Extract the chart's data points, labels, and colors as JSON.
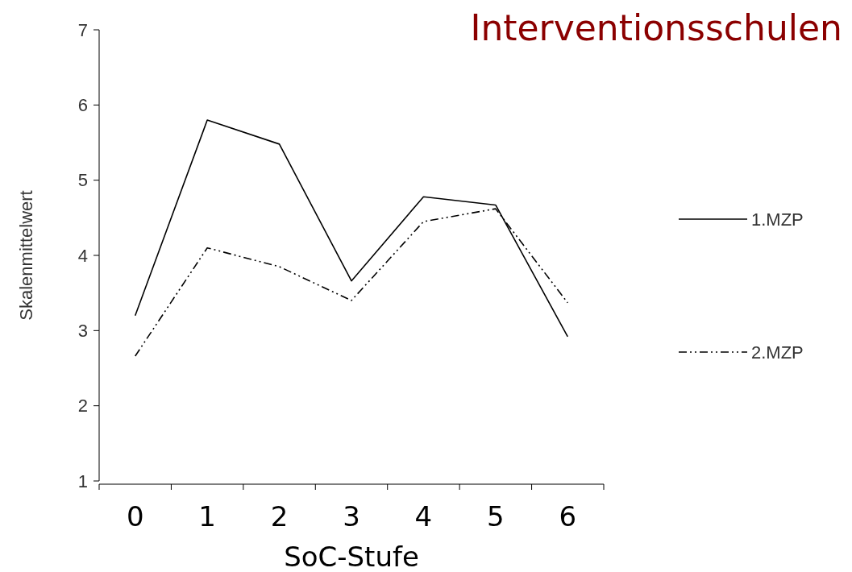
{
  "chart_data": {
    "type": "line",
    "title": "Interventionsschulen",
    "xlabel": "SoC-Stufe",
    "ylabel": "Skalenmittelwert",
    "categories": [
      "0",
      "1",
      "2",
      "3",
      "4",
      "5",
      "6"
    ],
    "series": [
      {
        "name": "1.MZP",
        "color": "#000000",
        "line_style": "solid",
        "values": [
          3.2,
          5.8,
          5.48,
          3.66,
          4.78,
          4.67,
          2.92
        ]
      },
      {
        "name": "2.MZP",
        "color": "#000000",
        "line_style": "dashed",
        "values": [
          2.66,
          4.1,
          3.85,
          3.4,
          4.45,
          4.62,
          3.37
        ]
      }
    ],
    "ylim": [
      1,
      7
    ],
    "yticks": [
      1,
      2,
      3,
      4,
      5,
      6,
      7
    ],
    "grid": false,
    "legend": "right",
    "marker": "none"
  }
}
